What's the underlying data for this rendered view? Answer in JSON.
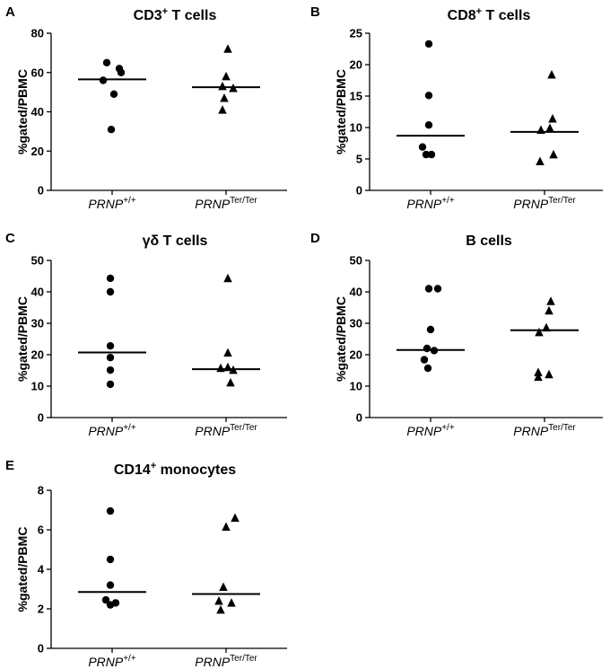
{
  "chart_data": [
    {
      "type": "scatter",
      "panel": "A",
      "title": "CD3",
      "title_sup": "+",
      "title_rest": " T cells",
      "ylabel": "%gated/PBMC",
      "ylim": [
        0,
        80
      ],
      "yticks": [
        0,
        20,
        40,
        60,
        80
      ],
      "categories": [
        {
          "base": "PRNP",
          "sup": "+/+"
        },
        {
          "base": "PRNP",
          "sup": "Ter/Ter"
        }
      ],
      "series": [
        {
          "name": "PRNP+/+",
          "marker": "circle",
          "values": [
            65,
            62,
            60,
            56,
            49,
            31
          ],
          "mean": 56.5
        },
        {
          "name": "PRNPTer/Ter",
          "marker": "triangle",
          "values": [
            72,
            58,
            53,
            52,
            47,
            41
          ],
          "mean": 52.5
        }
      ]
    },
    {
      "type": "scatter",
      "panel": "B",
      "title": "CD8",
      "title_sup": "+",
      "title_rest": " T cells",
      "ylabel": "%gated/PBMC",
      "ylim": [
        0,
        25
      ],
      "yticks": [
        0,
        5,
        10,
        15,
        20,
        25
      ],
      "categories": [
        {
          "base": "PRNP",
          "sup": "+/+"
        },
        {
          "base": "PRNP",
          "sup": "Ter/Ter"
        }
      ],
      "series": [
        {
          "name": "PRNP+/+",
          "marker": "circle",
          "values": [
            23.3,
            15.1,
            10.4,
            6.9,
            5.7,
            5.7
          ],
          "mean": 8.7
        },
        {
          "name": "PRNPTer/Ter",
          "marker": "triangle",
          "values": [
            18.4,
            11.4,
            9.9,
            9.6,
            5.7,
            4.6
          ],
          "mean": 9.3
        }
      ]
    },
    {
      "type": "scatter",
      "panel": "C",
      "title": "γδ T cells",
      "title_sup": "",
      "title_rest": "",
      "ylabel": "%gated/PBMC",
      "ylim": [
        0,
        50
      ],
      "yticks": [
        0,
        10,
        20,
        30,
        40,
        50
      ],
      "categories": [
        {
          "base": "PRNP",
          "sup": "+/+"
        },
        {
          "base": "PRNP",
          "sup": "Ter/Ter"
        }
      ],
      "series": [
        {
          "name": "PRNP+/+",
          "marker": "circle",
          "values": [
            44.3,
            40.0,
            22.8,
            19.1,
            15.1,
            10.6
          ],
          "mean": 20.7
        },
        {
          "name": "PRNPTer/Ter",
          "marker": "triangle",
          "values": [
            44.3,
            20.6,
            16.0,
            15.7,
            15.1,
            11.1
          ],
          "mean": 15.4
        }
      ]
    },
    {
      "type": "scatter",
      "panel": "D",
      "title": "B cells",
      "title_sup": "",
      "title_rest": "",
      "ylabel": "%gated/PBMC",
      "ylim": [
        0,
        50
      ],
      "yticks": [
        0,
        10,
        20,
        30,
        40,
        50
      ],
      "categories": [
        {
          "base": "PRNP",
          "sup": "+/+"
        },
        {
          "base": "PRNP",
          "sup": "Ter/Ter"
        }
      ],
      "series": [
        {
          "name": "PRNP+/+",
          "marker": "circle",
          "values": [
            41.0,
            41.0,
            28.0,
            22.0,
            21.3,
            18.4,
            15.7
          ],
          "mean": 21.5
        },
        {
          "name": "PRNPTer/Ter",
          "marker": "triangle",
          "values": [
            37.0,
            34.0,
            28.6,
            27.1,
            14.4,
            12.9,
            13.7
          ],
          "mean": 27.8
        }
      ]
    },
    {
      "type": "scatter",
      "panel": "E",
      "title": "CD14",
      "title_sup": "+",
      "title_rest": " monocytes",
      "ylabel": "%gated/PBMC",
      "ylim": [
        0,
        8
      ],
      "yticks": [
        0,
        2,
        4,
        6,
        8
      ],
      "categories": [
        {
          "base": "PRNP",
          "sup": "+/+"
        },
        {
          "base": "PRNP",
          "sup": "Ter/Ter"
        }
      ],
      "series": [
        {
          "name": "PRNP+/+",
          "marker": "circle",
          "values": [
            6.95,
            4.5,
            3.2,
            2.45,
            2.2,
            2.3
          ],
          "mean": 2.85
        },
        {
          "name": "PRNPTer/Ter",
          "marker": "triangle",
          "values": [
            6.6,
            6.15,
            3.1,
            2.4,
            2.3,
            1.95
          ],
          "mean": 2.75
        }
      ]
    }
  ]
}
